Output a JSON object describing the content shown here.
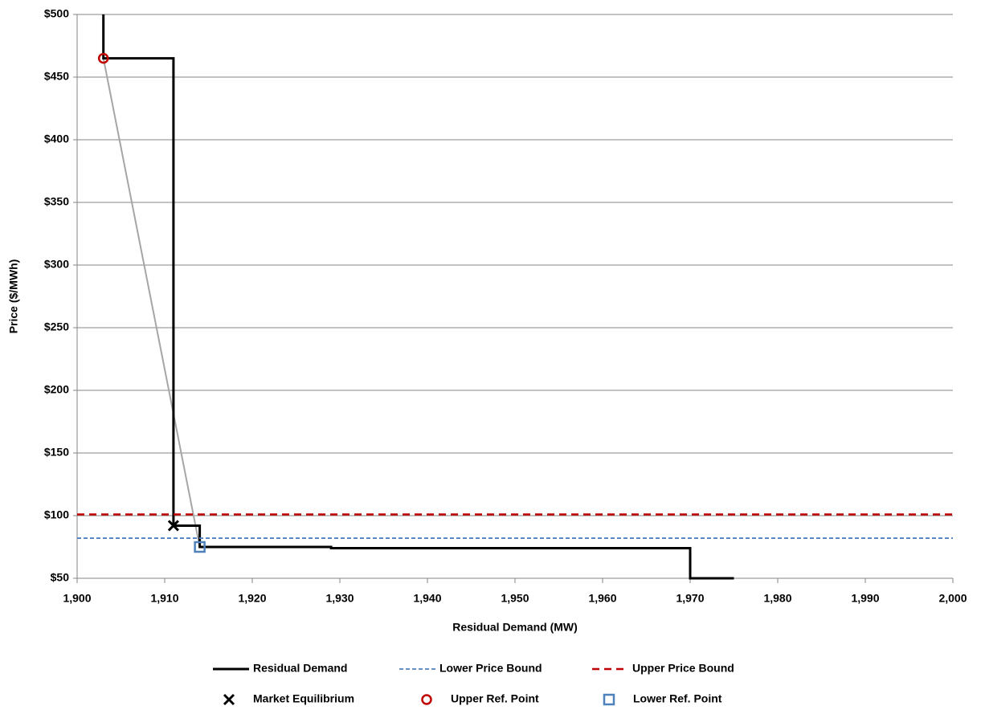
{
  "chart_data": {
    "type": "line",
    "xlabel": "Residual Demand (MW)",
    "ylabel": "Price ($/MWh)",
    "xlim": [
      1900,
      2000
    ],
    "ylim": [
      50,
      500
    ],
    "xticks": [
      {
        "value": 1900,
        "label": "1,900"
      },
      {
        "value": 1910,
        "label": "1,910"
      },
      {
        "value": 1920,
        "label": "1,920"
      },
      {
        "value": 1930,
        "label": "1,930"
      },
      {
        "value": 1940,
        "label": "1,940"
      },
      {
        "value": 1950,
        "label": "1,950"
      },
      {
        "value": 1960,
        "label": "1,960"
      },
      {
        "value": 1970,
        "label": "1,970"
      },
      {
        "value": 1980,
        "label": "1,980"
      },
      {
        "value": 1990,
        "label": "1,990"
      },
      {
        "value": 2000,
        "label": "2,000"
      }
    ],
    "yticks": [
      {
        "value": 50,
        "label": "$50"
      },
      {
        "value": 100,
        "label": "$100"
      },
      {
        "value": 150,
        "label": "$150"
      },
      {
        "value": 200,
        "label": "$200"
      },
      {
        "value": 250,
        "label": "$250"
      },
      {
        "value": 300,
        "label": "$300"
      },
      {
        "value": 350,
        "label": "$350"
      },
      {
        "value": 400,
        "label": "$400"
      },
      {
        "value": 450,
        "label": "$450"
      },
      {
        "value": 500,
        "label": "$500"
      }
    ],
    "grid": true,
    "series": [
      {
        "name": "Residual Demand",
        "color": "#000000",
        "style": "solid",
        "x": [
          1903,
          1903,
          1911,
          1911,
          1914,
          1914,
          1929,
          1929,
          1970,
          1970,
          1975
        ],
        "values": [
          500,
          465,
          465,
          92,
          92,
          75,
          75,
          74,
          74,
          50,
          50
        ]
      },
      {
        "name": "Lower Price Bound",
        "color": "#4f81bd",
        "style": "dashed",
        "x": [
          1900,
          2000
        ],
        "values": [
          82,
          82
        ]
      },
      {
        "name": "Upper Price Bound",
        "color": "#c00000",
        "style": "dashed",
        "x": [
          1900,
          2000
        ],
        "values": [
          101,
          101
        ]
      },
      {
        "name": "Market Equilibrium",
        "color": "#000000",
        "marker": "x",
        "x": [
          1911
        ],
        "values": [
          92
        ]
      },
      {
        "name": "Upper Ref. Point",
        "color": "#c00000",
        "marker": "circle",
        "x": [
          1903
        ],
        "values": [
          465
        ]
      },
      {
        "name": "Lower Ref. Point",
        "color": "#4f81bd",
        "marker": "square",
        "x": [
          1914
        ],
        "values": [
          75
        ]
      },
      {
        "color": "#a6a6a6",
        "style": "solid",
        "x": [
          1903,
          1914
        ],
        "values": [
          465,
          75
        ]
      }
    ]
  }
}
